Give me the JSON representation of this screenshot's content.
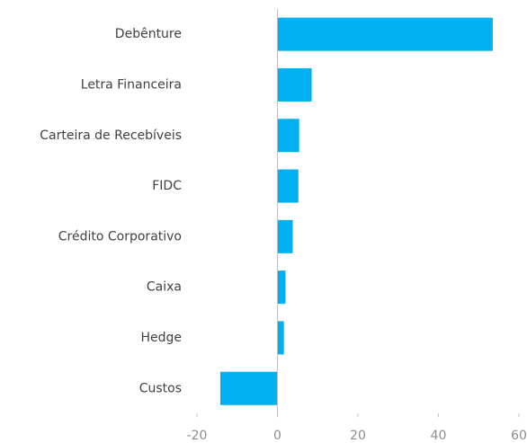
{
  "chart_data": {
    "type": "bar",
    "orientation": "horizontal",
    "categories": [
      "Debênture",
      "Letra Financeira",
      "Carteira de Recebíveis",
      "FIDC",
      "Crédito Corporativo",
      "Caixa",
      "Hedge",
      "Custos"
    ],
    "values": [
      53.5,
      8.5,
      5.4,
      5.2,
      3.8,
      2.0,
      1.6,
      -14.2
    ],
    "color": "#00b0f0",
    "xlim": [
      -20,
      60
    ],
    "xticks": [
      -20,
      0,
      20,
      40,
      60
    ],
    "grid": false
  }
}
